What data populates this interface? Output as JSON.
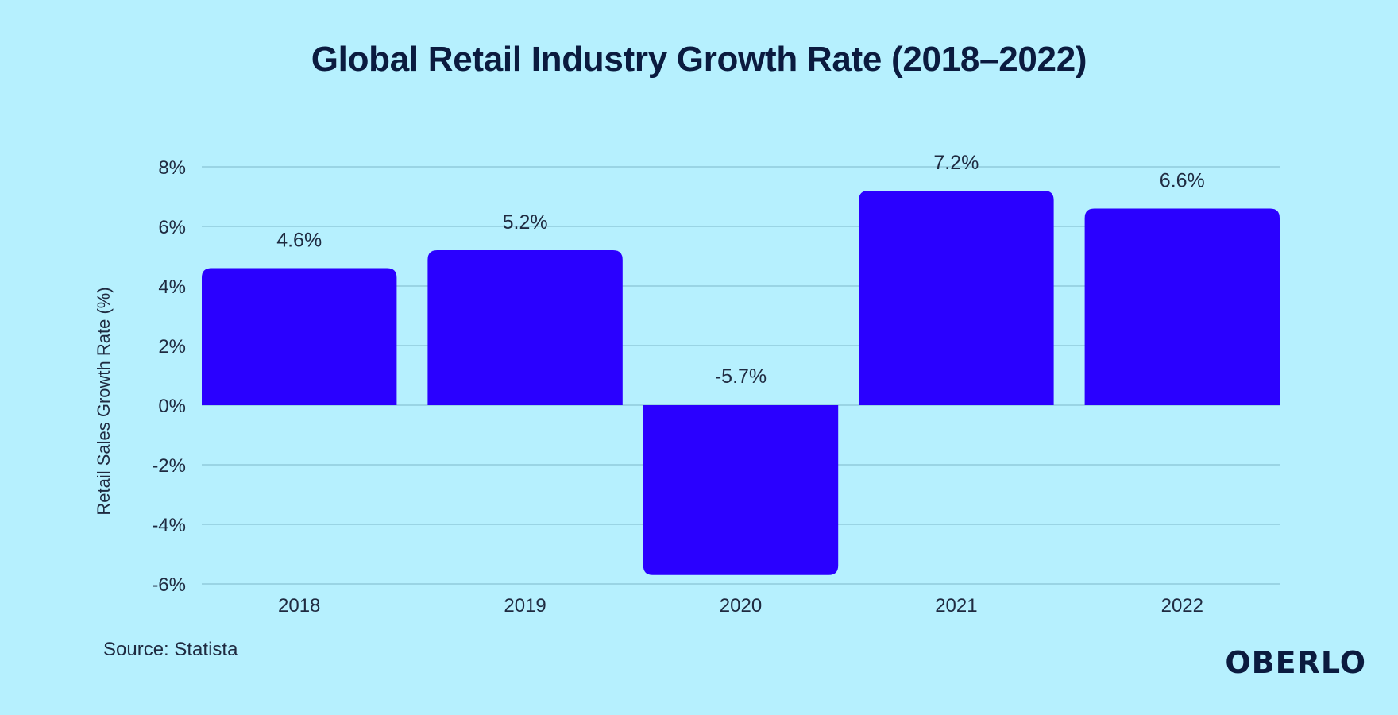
{
  "chart_data": {
    "type": "bar",
    "title": "Global Retail Industry Growth Rate (2018–2022)",
    "xlabel": "",
    "ylabel": "Retail Sales Growth Rate (%)",
    "categories": [
      "2018",
      "2019",
      "2020",
      "2021",
      "2022"
    ],
    "values": [
      4.6,
      5.2,
      -5.7,
      7.2,
      6.6
    ],
    "data_labels": [
      "4.6%",
      "5.2%",
      "-5.7%",
      "7.2%",
      "6.6%"
    ],
    "ylim": [
      -6,
      8
    ],
    "yticks": [
      8,
      6,
      4,
      2,
      0,
      -2,
      -4,
      -6
    ],
    "ytick_labels": [
      "8%",
      "6%",
      "4%",
      "2%",
      "0%",
      "-2%",
      "-4%",
      "-6%"
    ],
    "grid": true,
    "legend": "none",
    "bar_color": "#2a00ff"
  },
  "footer": {
    "source": "Source: Statista",
    "brand": "OBERLO"
  },
  "colors": {
    "background": "#b6f0fe",
    "text": "#1f2a40",
    "title": "#0b1b3f",
    "gridline": "#7fb7c9"
  }
}
